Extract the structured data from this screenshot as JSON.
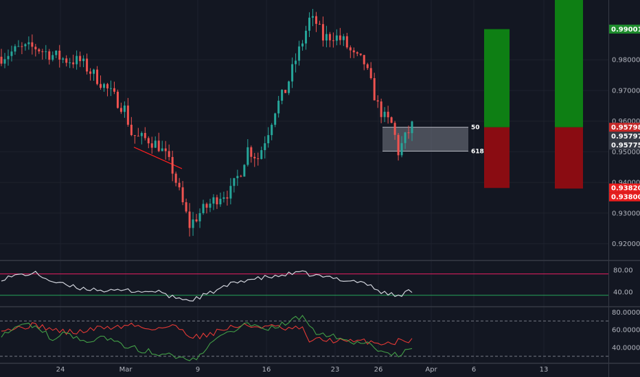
{
  "chart_data": {
    "type": "candlestick",
    "colors": {
      "background": "#131722",
      "grid": "#1e222d",
      "up": "#26a69a",
      "down": "#ef5350",
      "axis_text": "#b2b5be",
      "separator": "#363a45"
    },
    "x_ticks": [
      "24",
      "Mar",
      "9",
      "16",
      "23",
      "26",
      "Apr",
      "6",
      "13"
    ],
    "main": {
      "ylim": [
        0.915,
        0.9995
      ],
      "y_ticks": [
        "0.98000",
        "0.97000",
        "0.96000",
        "0.95000",
        "0.94000",
        "0.93000",
        "0.92000"
      ],
      "price_labels": [
        {
          "value": 0.99001,
          "label": "0.99001",
          "color": "#1e8c2d"
        },
        {
          "value": 0.95798,
          "label": "0.95798",
          "color": "#c62828"
        },
        {
          "value": 0.95797,
          "label": "0.95797",
          "color": "#363a45"
        },
        {
          "value": 0.95775,
          "label": "0.95775",
          "color": "#363a45"
        },
        {
          "value": 0.9382,
          "label": "0.93820",
          "color": "#e81e1e"
        },
        {
          "value": 0.938,
          "label": "0.93800",
          "color": "#e81e1e"
        }
      ],
      "fib_zone": {
        "top": 0.958,
        "bottom": 0.9502,
        "top_label": "50",
        "bottom_label": "618"
      },
      "trend_line": {
        "from": {
          "x": "Feb 28",
          "y": 0.9515
        },
        "to": {
          "x": "Mar 6",
          "y": 0.9445
        },
        "color": "#ff1f1f"
      },
      "positions": [
        {
          "x_from": "Apr 8",
          "x_to": "Apr 11",
          "entry": 0.958,
          "target": 0.99,
          "stop": 0.9382
        },
        {
          "x_from": "Apr 15",
          "x_to": "Apr 18",
          "entry": 0.958,
          "target": 0.9995,
          "stop": 0.938
        }
      ],
      "trend_points": [
        [
          0,
          0.981
        ],
        [
          5,
          0.9835
        ],
        [
          10,
          0.984
        ],
        [
          15,
          0.9815
        ],
        [
          19,
          0.98
        ],
        [
          23,
          0.9795
        ],
        [
          28,
          0.974
        ],
        [
          32,
          0.969
        ],
        [
          36,
          0.964
        ],
        [
          38,
          0.956
        ],
        [
          40,
          0.9545
        ],
        [
          43,
          0.954
        ],
        [
          46,
          0.952
        ],
        [
          48,
          0.9485
        ],
        [
          50,
          0.944
        ],
        [
          53,
          0.933
        ],
        [
          55,
          0.926
        ],
        [
          58,
          0.93
        ],
        [
          61,
          0.933
        ],
        [
          64,
          0.936
        ],
        [
          67,
          0.937
        ],
        [
          70,
          0.944
        ],
        [
          72,
          0.951
        ],
        [
          75,
          0.948
        ],
        [
          78,
          0.957
        ],
        [
          80,
          0.964
        ],
        [
          83,
          0.97
        ],
        [
          86,
          0.98
        ],
        [
          88,
          0.986
        ],
        [
          90,
          0.993
        ],
        [
          92,
          0.992
        ],
        [
          94,
          0.987
        ],
        [
          97,
          0.988
        ],
        [
          100,
          0.986
        ],
        [
          103,
          0.981
        ],
        [
          106,
          0.979
        ],
        [
          108,
          0.972
        ],
        [
          110,
          0.965
        ],
        [
          112,
          0.961
        ],
        [
          114,
          0.959
        ],
        [
          115,
          0.955
        ],
        [
          116,
          0.95
        ],
        [
          118,
          0.9545
        ],
        [
          120,
          0.9585
        ]
      ]
    },
    "rsi": {
      "ylim": [
        15,
        95
      ],
      "y_ticks": [
        "80.00",
        "40.00"
      ],
      "upper_line": 73,
      "lower_line": 34,
      "points": [
        [
          0,
          64
        ],
        [
          5,
          71
        ],
        [
          10,
          74
        ],
        [
          15,
          59
        ],
        [
          19,
          52
        ],
        [
          23,
          47
        ],
        [
          28,
          45
        ],
        [
          32,
          41
        ],
        [
          36,
          43
        ],
        [
          40,
          42
        ],
        [
          43,
          40
        ],
        [
          46,
          43
        ],
        [
          48,
          33
        ],
        [
          50,
          31
        ],
        [
          53,
          28
        ],
        [
          55,
          24
        ],
        [
          58,
          31
        ],
        [
          61,
          38
        ],
        [
          64,
          46
        ],
        [
          67,
          54
        ],
        [
          70,
          60
        ],
        [
          72,
          63
        ],
        [
          75,
          64
        ],
        [
          78,
          68
        ],
        [
          80,
          67
        ],
        [
          83,
          72
        ],
        [
          86,
          74
        ],
        [
          88,
          75
        ],
        [
          90,
          72
        ],
        [
          92,
          70
        ],
        [
          94,
          67
        ],
        [
          97,
          66
        ],
        [
          100,
          62
        ],
        [
          103,
          60
        ],
        [
          106,
          58
        ],
        [
          108,
          50
        ],
        [
          110,
          43
        ],
        [
          112,
          38
        ],
        [
          114,
          36
        ],
        [
          115,
          33
        ],
        [
          116,
          32
        ],
        [
          118,
          39
        ],
        [
          120,
          43
        ]
      ]
    },
    "stoch": {
      "ylim": [
        22,
        85
      ],
      "y_ticks": [
        "80.00000",
        "60.00000",
        "40.00000"
      ],
      "upper_line": 70,
      "lower_line": 30,
      "k_points": [
        [
          0,
          55
        ],
        [
          4,
          64
        ],
        [
          8,
          66
        ],
        [
          12,
          58
        ],
        [
          15,
          50
        ],
        [
          18,
          55
        ],
        [
          22,
          52
        ],
        [
          26,
          48
        ],
        [
          30,
          50
        ],
        [
          34,
          44
        ],
        [
          38,
          41
        ],
        [
          42,
          36
        ],
        [
          46,
          34
        ],
        [
          50,
          30
        ],
        [
          53,
          28
        ],
        [
          55,
          25
        ],
        [
          58,
          30
        ],
        [
          60,
          38
        ],
        [
          63,
          53
        ],
        [
          66,
          60
        ],
        [
          68,
          61
        ],
        [
          72,
          66
        ],
        [
          74,
          68
        ],
        [
          77,
          58
        ],
        [
          80,
          64
        ],
        [
          84,
          68
        ],
        [
          86,
          72
        ],
        [
          88,
          73
        ],
        [
          90,
          66
        ],
        [
          92,
          58
        ],
        [
          94,
          55
        ],
        [
          97,
          52
        ],
        [
          100,
          48
        ],
        [
          103,
          46
        ],
        [
          106,
          43
        ],
        [
          108,
          44
        ],
        [
          110,
          36
        ],
        [
          112,
          34
        ],
        [
          114,
          30
        ],
        [
          116,
          32
        ],
        [
          118,
          36
        ],
        [
          120,
          41
        ]
      ],
      "d_points": [
        [
          0,
          62
        ],
        [
          4,
          61
        ],
        [
          8,
          65
        ],
        [
          12,
          64
        ],
        [
          15,
          60
        ],
        [
          18,
          58
        ],
        [
          22,
          57
        ],
        [
          26,
          60
        ],
        [
          30,
          63
        ],
        [
          34,
          63
        ],
        [
          38,
          66
        ],
        [
          42,
          62
        ],
        [
          46,
          62
        ],
        [
          50,
          64
        ],
        [
          53,
          60
        ],
        [
          55,
          54
        ],
        [
          58,
          52
        ],
        [
          60,
          55
        ],
        [
          63,
          58
        ],
        [
          66,
          62
        ],
        [
          68,
          64
        ],
        [
          72,
          64
        ],
        [
          74,
          64
        ],
        [
          77,
          64
        ],
        [
          80,
          63
        ],
        [
          84,
          60
        ],
        [
          86,
          62
        ],
        [
          88,
          60
        ],
        [
          90,
          48
        ],
        [
          92,
          48
        ],
        [
          94,
          49
        ],
        [
          97,
          48
        ],
        [
          100,
          47
        ],
        [
          103,
          46
        ],
        [
          106,
          47
        ],
        [
          108,
          47
        ],
        [
          110,
          44
        ],
        [
          112,
          46
        ],
        [
          114,
          45
        ],
        [
          116,
          47
        ],
        [
          118,
          49
        ],
        [
          120,
          48
        ]
      ]
    }
  }
}
